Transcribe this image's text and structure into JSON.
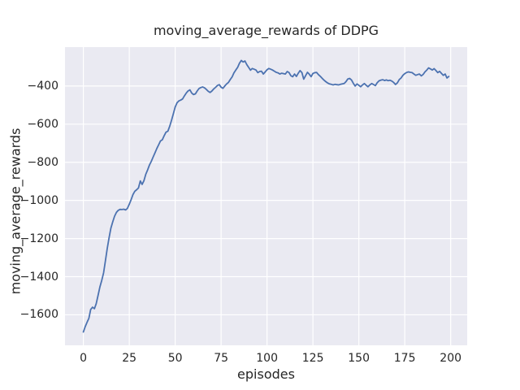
{
  "chart_data": {
    "type": "line",
    "title": "moving_average_rewards of DDPG",
    "xlabel": "episodes",
    "ylabel": "moving_average_rewards",
    "grid": true,
    "legend": null,
    "x_ticks": [
      0,
      25,
      50,
      75,
      100,
      125,
      150,
      175,
      200
    ],
    "x_tick_labels": [
      "0",
      "25",
      "50",
      "75",
      "100",
      "125",
      "150",
      "175",
      "200"
    ],
    "y_ticks": [
      -400,
      -600,
      -800,
      -1000,
      -1200,
      -1400,
      -1600
    ],
    "y_tick_labels": [
      "−400",
      "−600",
      "−800",
      "−1000",
      "−1200",
      "−1400",
      "−1600"
    ],
    "xlim": [
      -10,
      209
    ],
    "ylim": [
      -1760,
      -196
    ],
    "colors": {
      "line": "#4c72b0",
      "plot_background": "#eaeaf2",
      "grid": "#ffffff",
      "figure_background": "#ffffff",
      "text": "#262626"
    },
    "series": [
      {
        "name": "moving_average_rewards",
        "x_is_index": true,
        "values": [
          -1690,
          -1662,
          -1640,
          -1618,
          -1572,
          -1560,
          -1568,
          -1542,
          -1498,
          -1455,
          -1420,
          -1380,
          -1318,
          -1252,
          -1197,
          -1145,
          -1112,
          -1083,
          -1063,
          -1052,
          -1047,
          -1048,
          -1046,
          -1050,
          -1042,
          -1020,
          -996,
          -970,
          -952,
          -944,
          -935,
          -898,
          -916,
          -896,
          -862,
          -840,
          -814,
          -795,
          -772,
          -750,
          -728,
          -708,
          -688,
          -682,
          -660,
          -642,
          -637,
          -612,
          -580,
          -545,
          -510,
          -488,
          -478,
          -474,
          -468,
          -452,
          -437,
          -426,
          -420,
          -437,
          -445,
          -441,
          -426,
          -413,
          -408,
          -405,
          -410,
          -418,
          -428,
          -434,
          -426,
          -415,
          -407,
          -397,
          -393,
          -406,
          -412,
          -400,
          -389,
          -381,
          -366,
          -352,
          -331,
          -316,
          -302,
          -281,
          -266,
          -274,
          -269,
          -288,
          -302,
          -317,
          -308,
          -312,
          -316,
          -330,
          -324,
          -322,
          -337,
          -326,
          -315,
          -308,
          -312,
          -316,
          -322,
          -328,
          -331,
          -337,
          -333,
          -335,
          -337,
          -324,
          -330,
          -346,
          -351,
          -337,
          -350,
          -333,
          -319,
          -330,
          -364,
          -346,
          -328,
          -338,
          -351,
          -334,
          -330,
          -329,
          -340,
          -349,
          -359,
          -369,
          -377,
          -384,
          -389,
          -391,
          -394,
          -391,
          -393,
          -394,
          -391,
          -389,
          -387,
          -377,
          -363,
          -360,
          -368,
          -386,
          -400,
          -389,
          -396,
          -404,
          -394,
          -387,
          -396,
          -404,
          -394,
          -387,
          -392,
          -398,
          -383,
          -373,
          -369,
          -367,
          -371,
          -368,
          -372,
          -370,
          -374,
          -382,
          -392,
          -383,
          -366,
          -358,
          -344,
          -335,
          -329,
          -326,
          -328,
          -330,
          -337,
          -344,
          -340,
          -337,
          -347,
          -339,
          -326,
          -316,
          -305,
          -310,
          -316,
          -309,
          -319,
          -330,
          -323,
          -334,
          -344,
          -337,
          -358,
          -350
        ]
      }
    ]
  }
}
